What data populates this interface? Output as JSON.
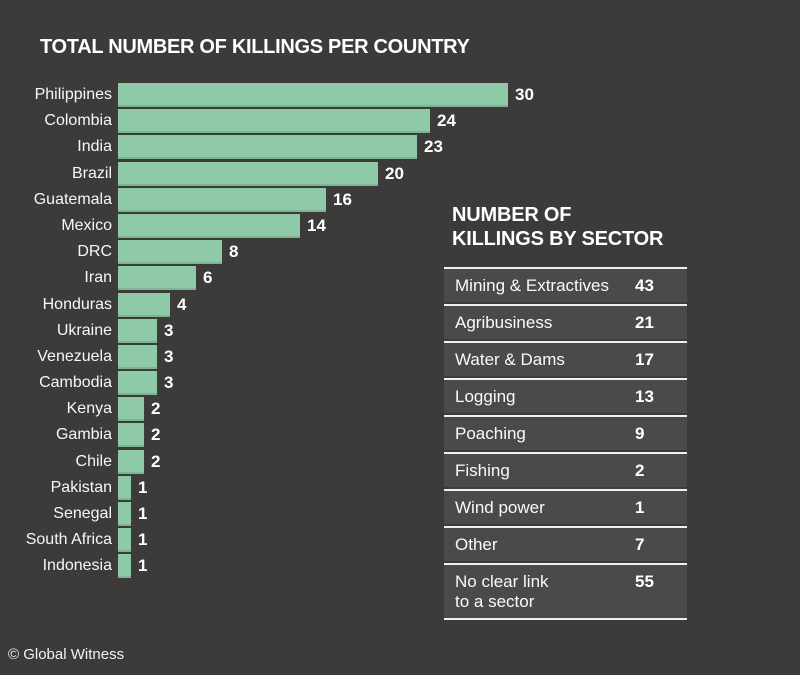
{
  "title": "TOTAL NUMBER OF KILLINGS PER COUNTRY",
  "footer": "© Global Witness",
  "colors": {
    "background": "#3c3b3a",
    "bar": "#8ec9a8",
    "table_row_background": "#4b4a49",
    "separator": "#f0f0f0",
    "text": "#ffffff"
  },
  "sector_panel": {
    "title_lines": [
      "NUMBER OF",
      "KILLINGS BY SECTOR"
    ]
  },
  "chart_data": [
    {
      "type": "bar",
      "orientation": "horizontal",
      "title": "TOTAL NUMBER OF KILLINGS PER COUNTRY",
      "categories": [
        "Philippines",
        "Colombia",
        "India",
        "Brazil",
        "Guatemala",
        "Mexico",
        "DRC",
        "Iran",
        "Honduras",
        "Ukraine",
        "Venezuela",
        "Cambodia",
        "Kenya",
        "Gambia",
        "Chile",
        "Pakistan",
        "Senegal",
        "South Africa",
        "Indonesia"
      ],
      "values": [
        30,
        24,
        23,
        20,
        16,
        14,
        8,
        6,
        4,
        3,
        3,
        3,
        2,
        2,
        2,
        1,
        1,
        1,
        1
      ],
      "xlim": [
        0,
        30
      ],
      "value_labels": "end-of-bar",
      "grid": false,
      "legend": false
    },
    {
      "type": "table",
      "title": "NUMBER OF KILLINGS BY SECTOR",
      "rows": [
        {
          "label": "Mining & Extractives",
          "value": 43
        },
        {
          "label": "Agribusiness",
          "value": 21
        },
        {
          "label": "Water & Dams",
          "value": 17
        },
        {
          "label": "Logging",
          "value": 13
        },
        {
          "label": "Poaching",
          "value": 9
        },
        {
          "label": "Fishing",
          "value": 2
        },
        {
          "label": "Wind power",
          "value": 1
        },
        {
          "label": "Other",
          "value": 7
        },
        {
          "label": "No clear link\nto a sector",
          "value": 55
        }
      ]
    }
  ]
}
